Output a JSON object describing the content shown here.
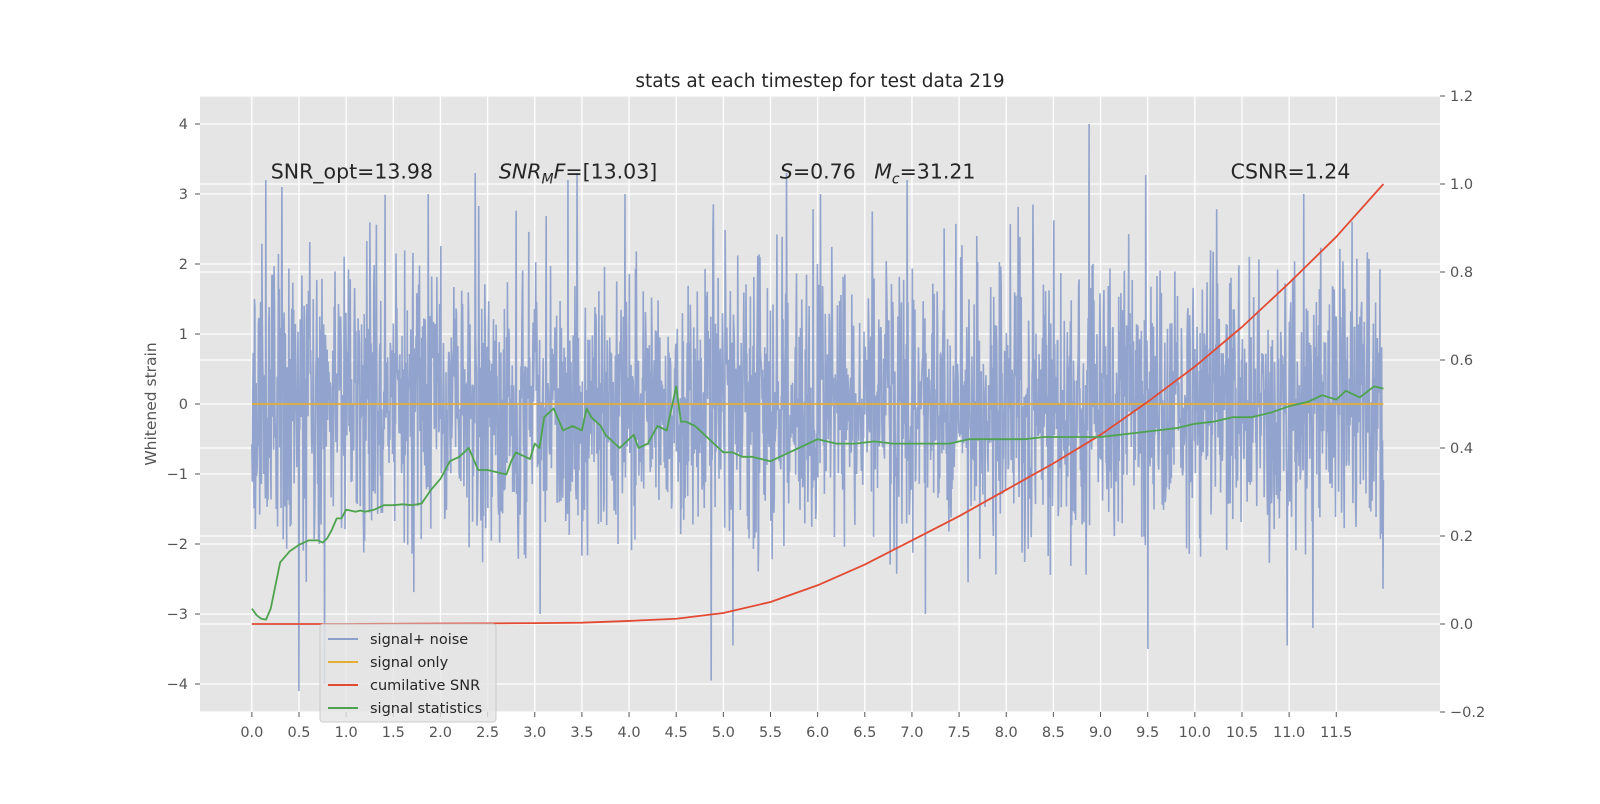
{
  "chart_data": {
    "type": "line",
    "title": "stats at each timestep for test data 219",
    "xlabel": "",
    "ylabel": "Whitened strain",
    "y2label": "",
    "xlim": [
      -0.55,
      12.6
    ],
    "ylim": [
      -4.4,
      4.4
    ],
    "y2lim": [
      -0.2,
      1.2
    ],
    "x_ticks": [
      0.0,
      0.5,
      1.0,
      1.5,
      2.0,
      2.5,
      3.0,
      3.5,
      4.0,
      4.5,
      5.0,
      5.5,
      6.0,
      6.5,
      7.0,
      7.5,
      8.0,
      8.5,
      9.0,
      9.5,
      10.0,
      10.5,
      11.0,
      11.5
    ],
    "x_tick_labels": [
      "0.0",
      "0.5",
      "1.0",
      "1.5",
      "2.0",
      "2.5",
      "3.0",
      "3.5",
      "4.0",
      "4.5",
      "5.0",
      "5.5",
      "6.0",
      "6.5",
      "7.0",
      "7.5",
      "8.0",
      "8.5",
      "9.0",
      "9.5",
      "10.0",
      "10.5",
      "11.0",
      "11.5"
    ],
    "y_ticks": [
      -4,
      -3,
      -2,
      -1,
      0,
      1,
      2,
      3,
      4
    ],
    "y_tick_labels": [
      "−4",
      "−3",
      "−2",
      "−1",
      "0",
      "1",
      "2",
      "3",
      "4"
    ],
    "y2_ticks": [
      -0.2,
      0.0,
      0.2,
      0.4,
      0.6,
      0.8,
      1.0,
      1.2
    ],
    "y2_tick_labels": [
      "−0.2",
      "0.0",
      "0.2",
      "0.4",
      "0.6",
      "0.8",
      "1.0",
      "1.2"
    ],
    "grid": true,
    "legend_placement": "lower-left",
    "series": [
      {
        "name": "signal+ noise",
        "axis": "left",
        "color": "#8da0cb",
        "noise_sigma": 1.0,
        "x_range": [
          0.0,
          12.0
        ],
        "peaks": [
          [
            0.03,
            1.5
          ],
          [
            0.15,
            3.2
          ],
          [
            0.32,
            3.1
          ],
          [
            0.5,
            -4.1
          ],
          [
            0.77,
            -4.0
          ],
          [
            1.87,
            3.0
          ],
          [
            2.37,
            3.3
          ],
          [
            3.35,
            3.2
          ],
          [
            3.45,
            3.3
          ],
          [
            4.87,
            -3.95
          ],
          [
            5.1,
            -3.45
          ],
          [
            5.67,
            3.3
          ],
          [
            6.0,
            3.2
          ],
          [
            6.95,
            3.2
          ],
          [
            8.88,
            4.0
          ],
          [
            9.48,
            3.27
          ],
          [
            9.5,
            -3.5
          ],
          [
            10.98,
            -3.45
          ],
          [
            11.25,
            -3.2
          ]
        ],
        "dip": [
          6.0,
          -1.05
        ]
      },
      {
        "name": "signal only",
        "axis": "left",
        "color": "#e5ae38",
        "x": [
          0.0,
          12.0
        ],
        "y": [
          0.0,
          0.0
        ]
      },
      {
        "name": "cumilative SNR",
        "axis": "right",
        "color": "#e24a33",
        "x": [
          0.0,
          0.5,
          1.0,
          1.5,
          2.0,
          2.5,
          3.0,
          3.5,
          4.0,
          4.5,
          5.0,
          5.5,
          6.0,
          6.5,
          7.0,
          7.5,
          8.0,
          8.5,
          9.0,
          9.5,
          10.0,
          10.5,
          11.0,
          11.5,
          12.0
        ],
        "y": [
          0.0,
          0.0,
          0.0,
          0.0005,
          0.001,
          0.0015,
          0.002,
          0.003,
          0.007,
          0.012,
          0.025,
          0.05,
          0.088,
          0.135,
          0.19,
          0.245,
          0.305,
          0.365,
          0.43,
          0.505,
          0.585,
          0.675,
          0.775,
          0.88,
          1.0
        ]
      },
      {
        "name": "signal statistics",
        "axis": "right",
        "color": "#4ea34e",
        "x": [
          0.0,
          0.05,
          0.1,
          0.15,
          0.2,
          0.3,
          0.4,
          0.5,
          0.6,
          0.7,
          0.75,
          0.8,
          0.85,
          0.9,
          0.95,
          1.0,
          1.1,
          1.15,
          1.2,
          1.3,
          1.4,
          1.5,
          1.6,
          1.7,
          1.8,
          1.9,
          2.0,
          2.1,
          2.2,
          2.3,
          2.4,
          2.5,
          2.6,
          2.7,
          2.75,
          2.8,
          2.9,
          2.95,
          3.0,
          3.05,
          3.1,
          3.2,
          3.3,
          3.4,
          3.5,
          3.55,
          3.6,
          3.7,
          3.75,
          3.8,
          3.9,
          4.0,
          4.05,
          4.1,
          4.2,
          4.3,
          4.4,
          4.5,
          4.55,
          4.6,
          4.7,
          4.8,
          4.9,
          5.0,
          5.1,
          5.2,
          5.3,
          5.4,
          5.5,
          5.6,
          5.7,
          5.8,
          5.9,
          6.0,
          6.2,
          6.4,
          6.6,
          6.8,
          7.0,
          7.2,
          7.4,
          7.6,
          7.8,
          8.0,
          8.2,
          8.4,
          8.6,
          8.8,
          9.0,
          9.2,
          9.4,
          9.6,
          9.8,
          10.0,
          10.2,
          10.4,
          10.6,
          10.8,
          11.0,
          11.2,
          11.35,
          11.5,
          11.6,
          11.75,
          11.9,
          12.0
        ],
        "y": [
          0.035,
          0.02,
          0.012,
          0.01,
          0.035,
          0.14,
          0.165,
          0.18,
          0.19,
          0.19,
          0.185,
          0.195,
          0.215,
          0.24,
          0.24,
          0.26,
          0.255,
          0.258,
          0.255,
          0.26,
          0.27,
          0.27,
          0.272,
          0.27,
          0.274,
          0.305,
          0.33,
          0.37,
          0.38,
          0.4,
          0.35,
          0.35,
          0.345,
          0.34,
          0.37,
          0.39,
          0.38,
          0.375,
          0.41,
          0.4,
          0.47,
          0.49,
          0.44,
          0.45,
          0.44,
          0.49,
          0.47,
          0.45,
          0.43,
          0.42,
          0.4,
          0.42,
          0.43,
          0.4,
          0.41,
          0.45,
          0.44,
          0.54,
          0.46,
          0.46,
          0.45,
          0.43,
          0.41,
          0.39,
          0.39,
          0.38,
          0.38,
          0.375,
          0.37,
          0.38,
          0.39,
          0.4,
          0.41,
          0.42,
          0.41,
          0.41,
          0.415,
          0.41,
          0.41,
          0.41,
          0.41,
          0.42,
          0.42,
          0.42,
          0.42,
          0.425,
          0.425,
          0.425,
          0.425,
          0.43,
          0.435,
          0.44,
          0.445,
          0.455,
          0.46,
          0.47,
          0.47,
          0.48,
          0.495,
          0.505,
          0.52,
          0.51,
          0.53,
          0.515,
          0.54,
          0.535
        ]
      }
    ],
    "annotations": [
      {
        "name": "snr-opt",
        "x": 0.2,
        "parts": [
          [
            "SNR_opt=13.98",
            false
          ]
        ]
      },
      {
        "name": "snr-mf",
        "x": 2.62,
        "parts": [
          [
            "SNR",
            true
          ],
          [
            "M",
            true,
            "sub"
          ],
          [
            "F",
            true
          ],
          [
            "=[13.03]",
            false
          ]
        ]
      },
      {
        "name": "s-stat",
        "x": 5.6,
        "parts": [
          [
            "S",
            true
          ],
          [
            "=0.76",
            false
          ]
        ]
      },
      {
        "name": "chirp-mass",
        "x": 6.6,
        "parts": [
          [
            "M",
            true
          ],
          [
            "c",
            true,
            "sub"
          ],
          [
            "=31.21",
            false
          ]
        ]
      },
      {
        "name": "csnr",
        "x": 10.38,
        "parts": [
          [
            "CSNR=1.24",
            false
          ]
        ]
      }
    ],
    "annotation_y": 3.22
  }
}
